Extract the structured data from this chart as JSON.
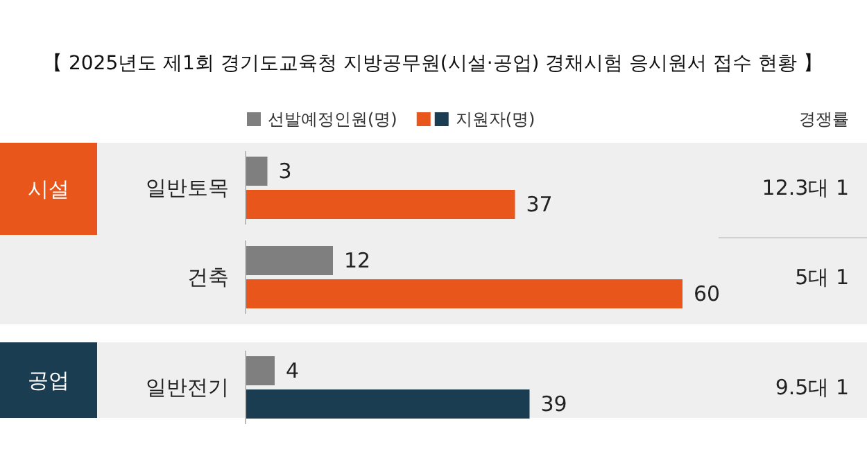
{
  "chart_data": {
    "type": "bar",
    "orientation": "horizontal",
    "title": "【 2025년도 제1회 경기도교육청 지방공무원(시설·공업) 경채시험 응시원서 접수 현황 】",
    "categories": [
      "일반토목",
      "건축",
      "일반전기"
    ],
    "series": [
      {
        "name": "선발예정인원(명)",
        "color": "#7f7f7f",
        "values": [
          3,
          12,
          4
        ]
      },
      {
        "name": "지원자(명)",
        "colors": [
          "#e8561c",
          "#e8561c",
          "#1b3d51"
        ],
        "values": [
          37,
          60,
          39
        ]
      }
    ],
    "data_labels": true,
    "legend": "top",
    "annotations": [
      "경쟁률",
      "시설",
      "공업",
      "12.3대 1",
      "5대 1",
      "9.5대 1"
    ]
  }
}
